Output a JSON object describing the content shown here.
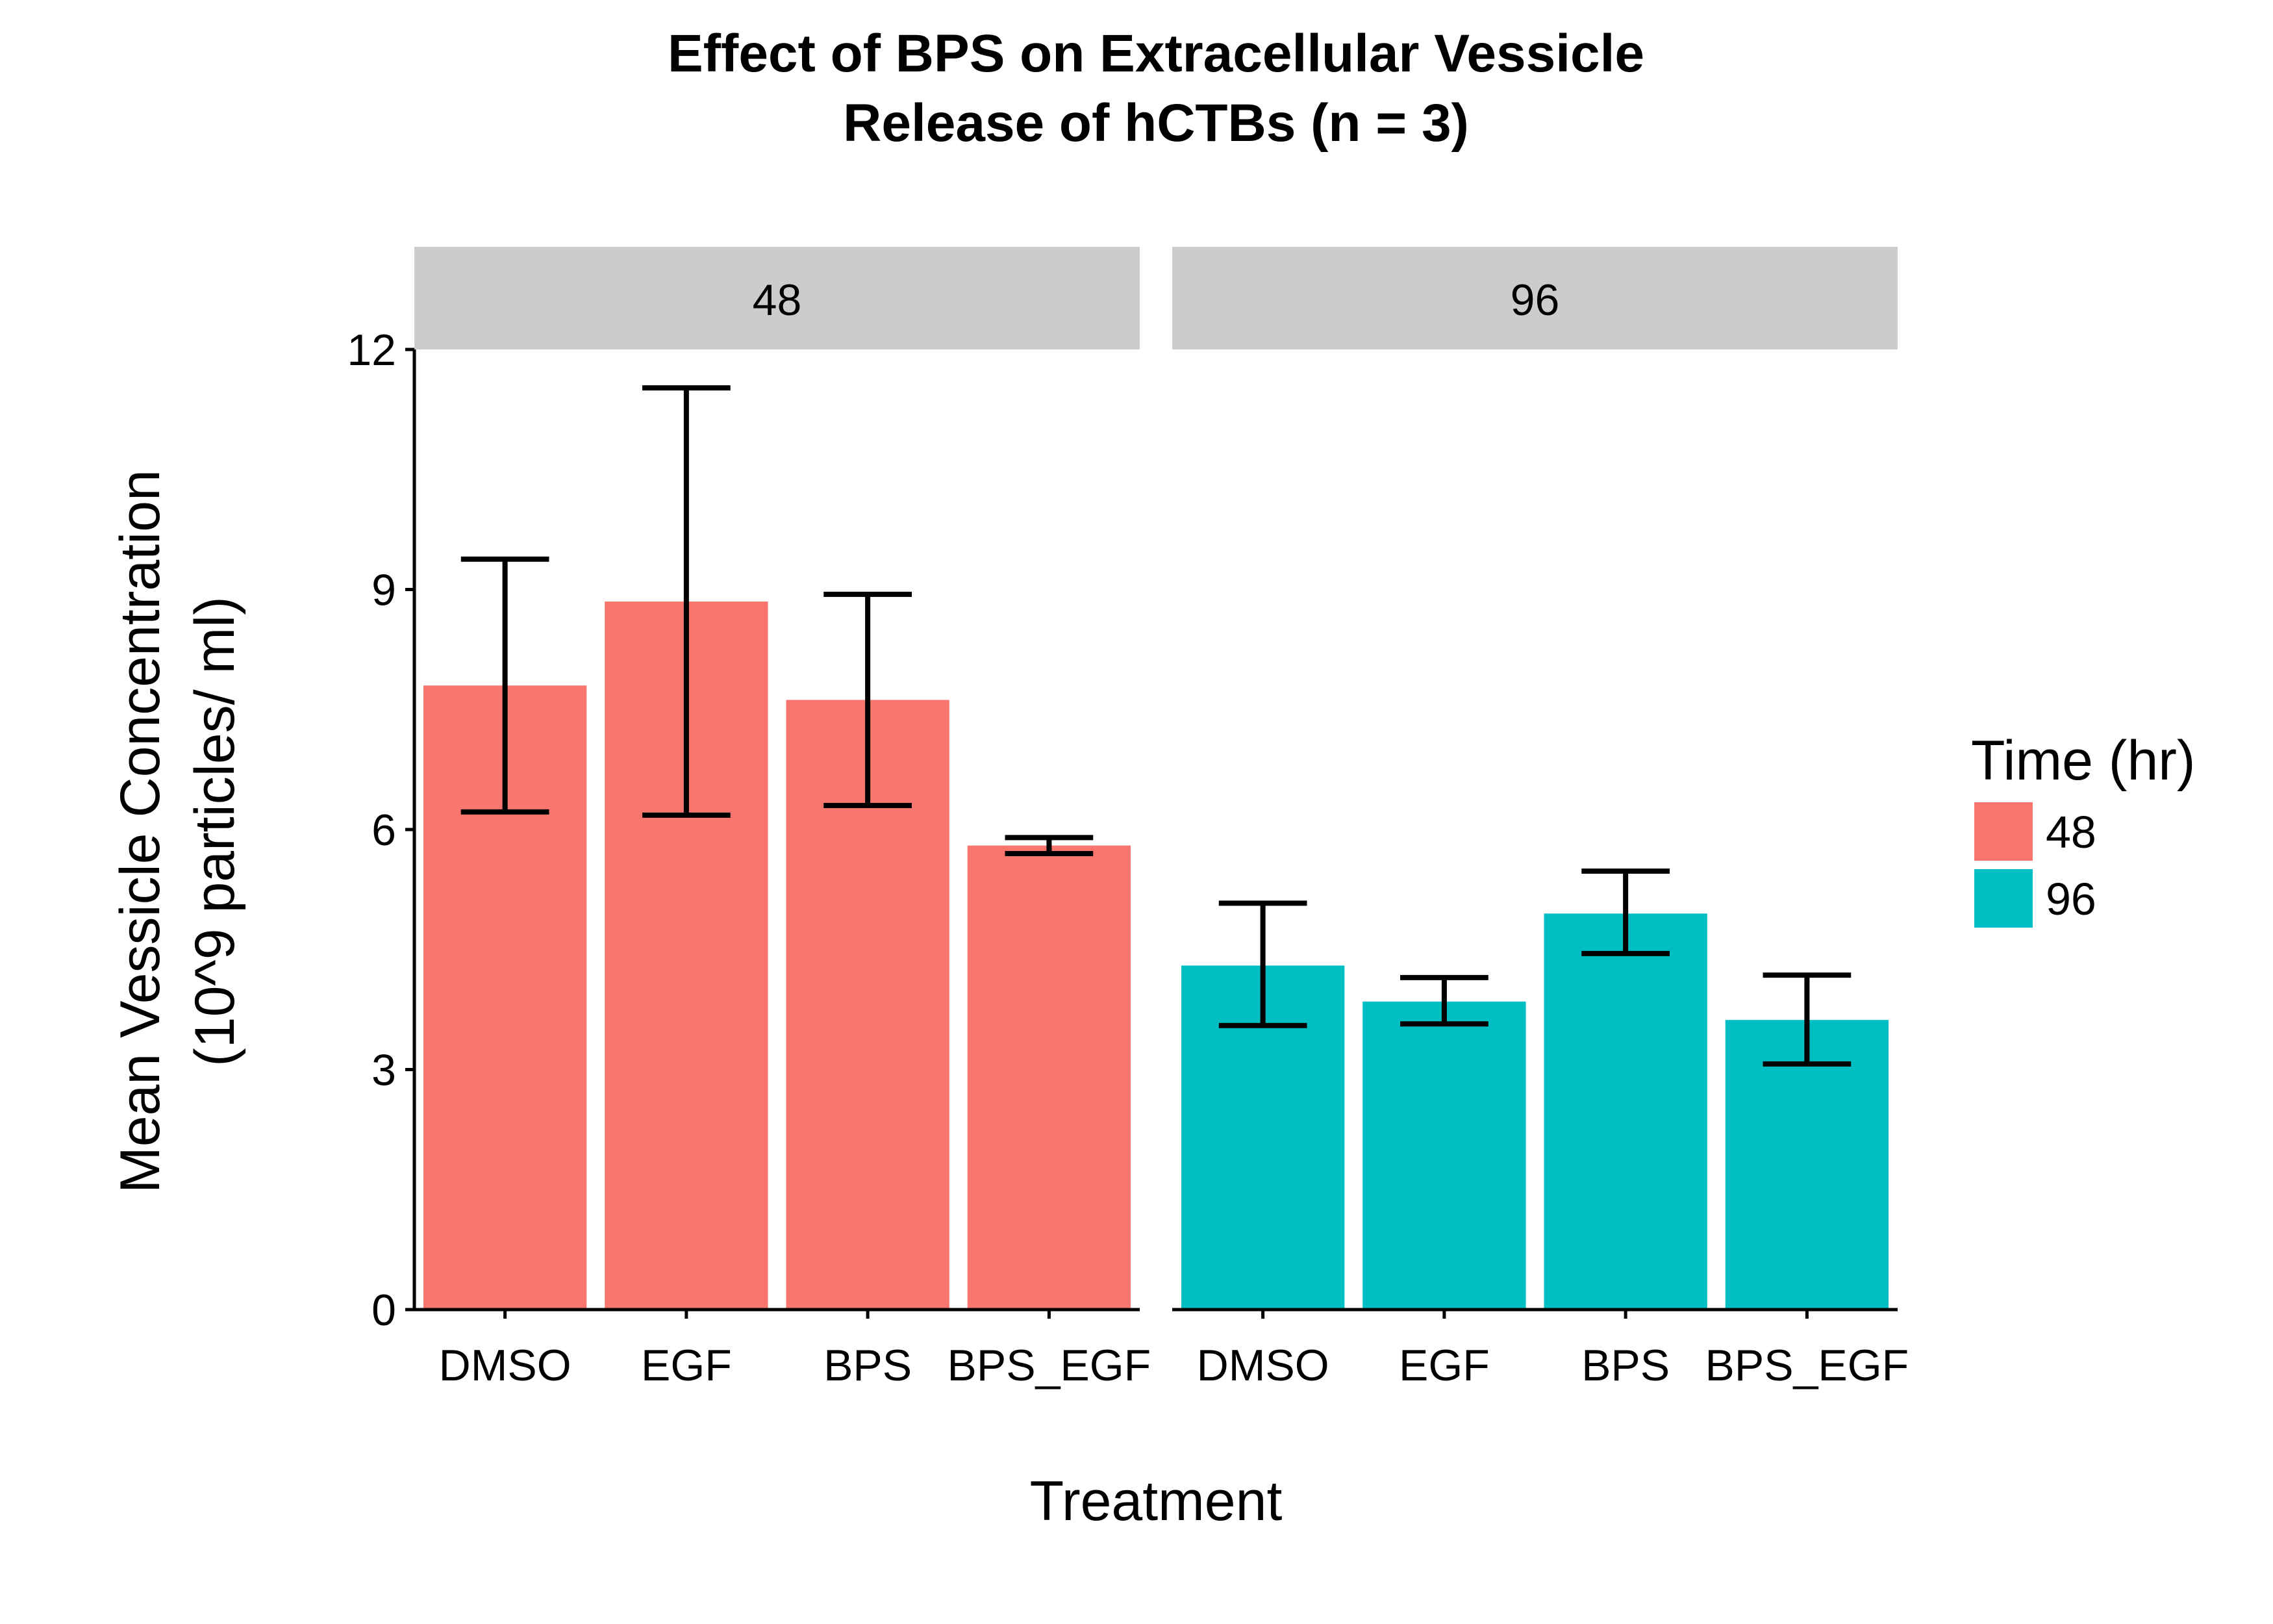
{
  "chart_data": {
    "type": "bar",
    "title_lines": [
      "Effect of BPS on Extracellular Vessicle",
      "Release of hCTBs (n = 3)"
    ],
    "xlabel": "Treatment",
    "ylabel_lines": [
      "Mean Vessicle Concentration",
      "(10^9 particles/ ml)"
    ],
    "ylim": [
      0,
      12
    ],
    "yticks": [
      "0",
      "3",
      "6",
      "9",
      "12"
    ],
    "grid": false,
    "legend": {
      "title": "Time (hr)",
      "placement": "right",
      "entries": [
        {
          "label": "48",
          "color": "#F8766D"
        },
        {
          "label": "96",
          "color": "#00BFC4"
        }
      ]
    },
    "categories": [
      "DMSO",
      "EGF",
      "BPS",
      "BPS_EGF"
    ],
    "panels": [
      {
        "strip_label": "48",
        "color": "#F8766D",
        "values": [
          7.8,
          8.85,
          7.62,
          5.8
        ],
        "error_low": [
          6.22,
          6.18,
          6.3,
          5.7
        ],
        "error_high": [
          9.38,
          11.52,
          8.94,
          5.9
        ]
      },
      {
        "strip_label": "96",
        "color": "#00BFC4",
        "values": [
          4.3,
          3.85,
          4.95,
          3.62
        ],
        "error_low": [
          3.55,
          3.57,
          4.45,
          3.07
        ],
        "error_high": [
          5.08,
          4.15,
          5.48,
          4.18
        ]
      }
    ]
  }
}
